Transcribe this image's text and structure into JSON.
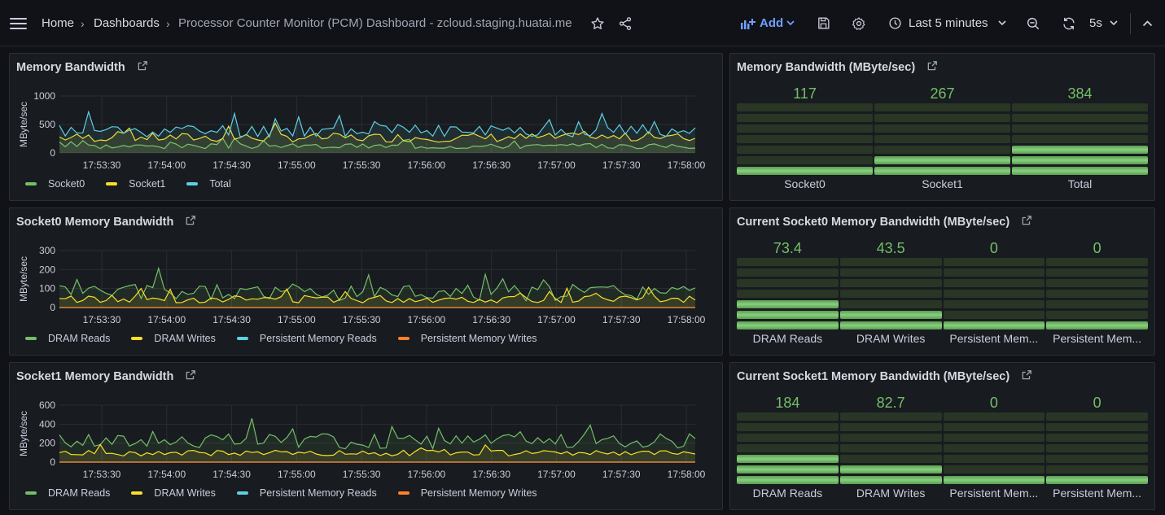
{
  "breadcrumb": {
    "home": "Home",
    "dashboards": "Dashboards",
    "title": "Processor Counter Monitor (PCM) Dashboard - zcloud.staging.huatai.me"
  },
  "toolbar": {
    "add_label": "Add",
    "time_range": "Last 5 minutes",
    "refresh_interval": "5s"
  },
  "colors": {
    "green": "#73bf69",
    "yellow": "#fade2a",
    "blue": "#8ab8ff",
    "cyan": "#5fcfe3",
    "orange": "#ff7f2a"
  },
  "timeseries_panels": [
    {
      "title": "Memory Bandwidth",
      "chart_data": {
        "type": "line",
        "ylabel": "MByte/sec",
        "yticks": [
          "1000",
          "500",
          "0"
        ],
        "ylim": [
          0,
          1000
        ],
        "xticks": [
          "17:53:30",
          "17:54:00",
          "17:54:30",
          "17:55:00",
          "17:55:30",
          "17:56:00",
          "17:56:30",
          "17:57:00",
          "17:57:30",
          "17:58:00"
        ],
        "series": [
          {
            "name": "Socket0",
            "color": "#73bf69",
            "base": 120,
            "amp": 90,
            "seed": 3
          },
          {
            "name": "Socket1",
            "color": "#fade2a",
            "base": 270,
            "amp": 160,
            "seed": 7
          },
          {
            "name": "Total",
            "color": "#5fcfe3",
            "base": 390,
            "amp": 230,
            "seed": 11
          }
        ]
      }
    },
    {
      "title": "Socket0 Memory Bandwidth",
      "chart_data": {
        "type": "line",
        "ylabel": "MByte/sec",
        "yticks": [
          "300",
          "200",
          "100",
          "0"
        ],
        "ylim": [
          0,
          300
        ],
        "xticks": [
          "17:53:30",
          "17:54:00",
          "17:54:30",
          "17:55:00",
          "17:55:30",
          "17:56:00",
          "17:56:30",
          "17:57:00",
          "17:57:30",
          "17:58:00"
        ],
        "series": [
          {
            "name": "DRAM Reads",
            "color": "#73bf69",
            "base": 80,
            "amp": 90,
            "seed": 5
          },
          {
            "name": "DRAM Writes",
            "color": "#fade2a",
            "base": 45,
            "amp": 40,
            "seed": 13
          },
          {
            "name": "Persistent Memory Reads",
            "color": "#5fcfe3",
            "base": 0,
            "amp": 0,
            "seed": 1
          },
          {
            "name": "Persistent Memory Writes",
            "color": "#ff7f2a",
            "base": 0,
            "amp": 0,
            "seed": 2
          }
        ]
      }
    },
    {
      "title": "Socket1 Memory Bandwidth",
      "chart_data": {
        "type": "line",
        "ylabel": "MByte/sec",
        "yticks": [
          "600",
          "400",
          "200",
          "0"
        ],
        "ylim": [
          0,
          600
        ],
        "xticks": [
          "17:53:30",
          "17:54:00",
          "17:54:30",
          "17:55:00",
          "17:55:30",
          "17:56:00",
          "17:56:30",
          "17:57:00",
          "17:57:30",
          "17:58:00"
        ],
        "series": [
          {
            "name": "DRAM Reads",
            "color": "#73bf69",
            "base": 220,
            "amp": 160,
            "seed": 17
          },
          {
            "name": "DRAM Writes",
            "color": "#fade2a",
            "base": 95,
            "amp": 60,
            "seed": 19
          },
          {
            "name": "Persistent Memory Reads",
            "color": "#5fcfe3",
            "base": 0,
            "amp": 0,
            "seed": 1
          },
          {
            "name": "Persistent Memory Writes",
            "color": "#ff7f2a",
            "base": 0,
            "amp": 0,
            "seed": 2
          }
        ]
      }
    }
  ],
  "bargauge_panels": [
    {
      "title": "Memory Bandwidth (MByte/sec)",
      "gauges": [
        {
          "label": "Socket0",
          "value": "117",
          "fraction": 0.14
        },
        {
          "label": "Socket1",
          "value": "267",
          "fraction": 0.29
        },
        {
          "label": "Total",
          "value": "384",
          "fraction": 0.43
        }
      ]
    },
    {
      "title": "Current Socket0 Memory Bandwidth (MByte/sec)",
      "gauges": [
        {
          "label": "DRAM Reads",
          "value": "73.4",
          "fraction": 0.37
        },
        {
          "label": "DRAM Writes",
          "value": "43.5",
          "fraction": 0.22
        },
        {
          "label": "Persistent Mem...",
          "value": "0",
          "fraction": 0.14
        },
        {
          "label": "Persistent Mem...",
          "value": "0",
          "fraction": 0.14
        }
      ]
    },
    {
      "title": "Current Socket1 Memory Bandwidth (MByte/sec)",
      "gauges": [
        {
          "label": "DRAM Reads",
          "value": "184",
          "fraction": 0.37
        },
        {
          "label": "DRAM Writes",
          "value": "82.7",
          "fraction": 0.22
        },
        {
          "label": "Persistent Mem...",
          "value": "0",
          "fraction": 0.14
        },
        {
          "label": "Persistent Mem...",
          "value": "0",
          "fraction": 0.14
        }
      ]
    }
  ]
}
